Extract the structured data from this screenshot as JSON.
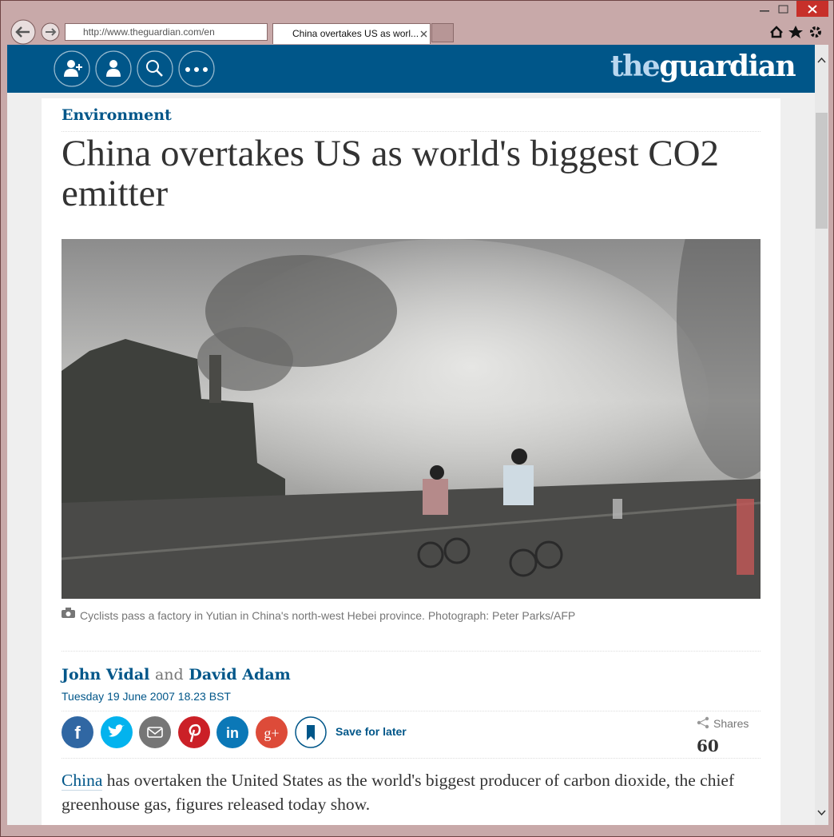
{
  "browser": {
    "address": "http://www.theguardian.com/en",
    "tab_title": "China overtakes US as worl..."
  },
  "header": {
    "logo_the": "the",
    "logo_guardian": "guardian"
  },
  "article": {
    "section": "Environment",
    "headline": "China overtakes US as world's biggest CO2 emitter",
    "caption": "Cyclists pass a factory in Yutian in China's north-west Hebei province. Photograph: Peter Parks/AFP",
    "authors": [
      "John Vidal",
      "David Adam"
    ],
    "author_join": "and",
    "date": "Tuesday 19 June 2007 18.23 BST",
    "share_icons": [
      "f",
      "in",
      "g+"
    ],
    "save": "Save for later",
    "shares_label": "Shares",
    "shares_count": "60",
    "body_link": "China",
    "body_text": " has overtaken the United States as the world's biggest producer of carbon dioxide, the chief greenhouse gas, figures released today show."
  }
}
